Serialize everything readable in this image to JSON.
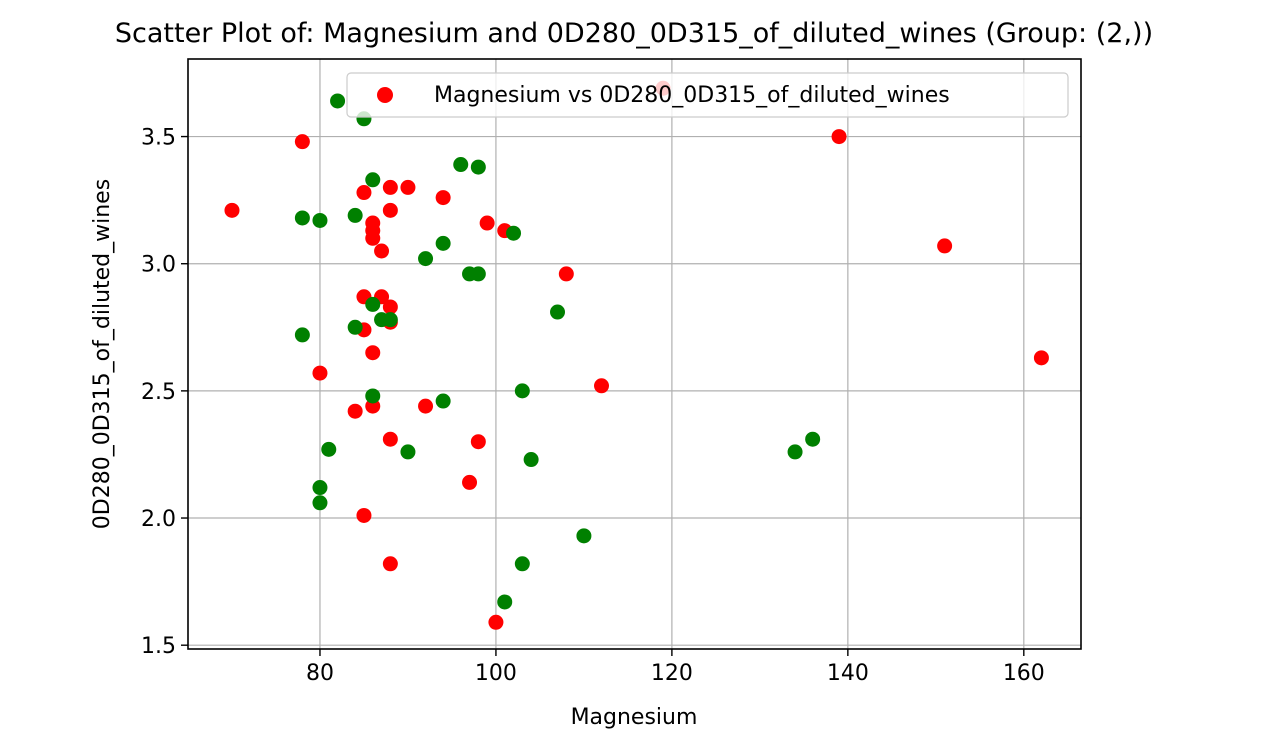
{
  "chart_data": {
    "type": "scatter",
    "title": "Scatter Plot of: Magnesium and 0D280_0D315_of_diluted_wines (Group: (2,))",
    "xlabel": "Magnesium",
    "ylabel": "0D280_0D315_of_diluted_wines",
    "xlim": [
      65,
      166.5
    ],
    "ylim": [
      1.485,
      3.805
    ],
    "xticks": [
      80,
      100,
      120,
      140,
      160
    ],
    "yticks": [
      1.5,
      2.0,
      2.5,
      3.0,
      3.5
    ],
    "grid": true,
    "legend": {
      "label": "Magnesium vs 0D280_0D315_of_diluted_wines",
      "position": "top-right"
    },
    "series": [
      {
        "color": "#ff0000",
        "points": [
          [
            70,
            3.21
          ],
          [
            78,
            3.48
          ],
          [
            80,
            2.57
          ],
          [
            84,
            2.42
          ],
          [
            85,
            3.28
          ],
          [
            85,
            2.87
          ],
          [
            85,
            2.74
          ],
          [
            85,
            2.01
          ],
          [
            86,
            3.16
          ],
          [
            86,
            3.13
          ],
          [
            86,
            3.1
          ],
          [
            86,
            2.65
          ],
          [
            86,
            2.44
          ],
          [
            87,
            3.05
          ],
          [
            87,
            2.87
          ],
          [
            88,
            3.3
          ],
          [
            88,
            3.21
          ],
          [
            88,
            2.83
          ],
          [
            88,
            2.77
          ],
          [
            88,
            2.31
          ],
          [
            88,
            1.82
          ],
          [
            90,
            3.3
          ],
          [
            92,
            2.44
          ],
          [
            94,
            3.26
          ],
          [
            97,
            2.14
          ],
          [
            98,
            2.3
          ],
          [
            99,
            3.16
          ],
          [
            100,
            1.59
          ],
          [
            101,
            3.13
          ],
          [
            108,
            2.96
          ],
          [
            112,
            2.52
          ],
          [
            119,
            3.69
          ],
          [
            139,
            3.5
          ],
          [
            151,
            3.07
          ],
          [
            162,
            2.63
          ]
        ]
      },
      {
        "color": "#008000",
        "points": [
          [
            78,
            3.18
          ],
          [
            78,
            2.72
          ],
          [
            80,
            3.17
          ],
          [
            80,
            2.12
          ],
          [
            80,
            2.06
          ],
          [
            81,
            2.27
          ],
          [
            82,
            3.64
          ],
          [
            84,
            3.19
          ],
          [
            84,
            2.75
          ],
          [
            85,
            3.57
          ],
          [
            86,
            3.33
          ],
          [
            86,
            2.84
          ],
          [
            86,
            2.48
          ],
          [
            87,
            2.78
          ],
          [
            88,
            2.78
          ],
          [
            90,
            2.26
          ],
          [
            92,
            3.02
          ],
          [
            94,
            3.08
          ],
          [
            94,
            2.46
          ],
          [
            96,
            3.39
          ],
          [
            97,
            2.96
          ],
          [
            98,
            3.38
          ],
          [
            98,
            2.96
          ],
          [
            101,
            1.67
          ],
          [
            102,
            3.12
          ],
          [
            103,
            2.5
          ],
          [
            103,
            1.82
          ],
          [
            104,
            2.23
          ],
          [
            107,
            2.81
          ],
          [
            110,
            1.93
          ],
          [
            134,
            2.26
          ],
          [
            136,
            2.31
          ]
        ]
      }
    ]
  }
}
